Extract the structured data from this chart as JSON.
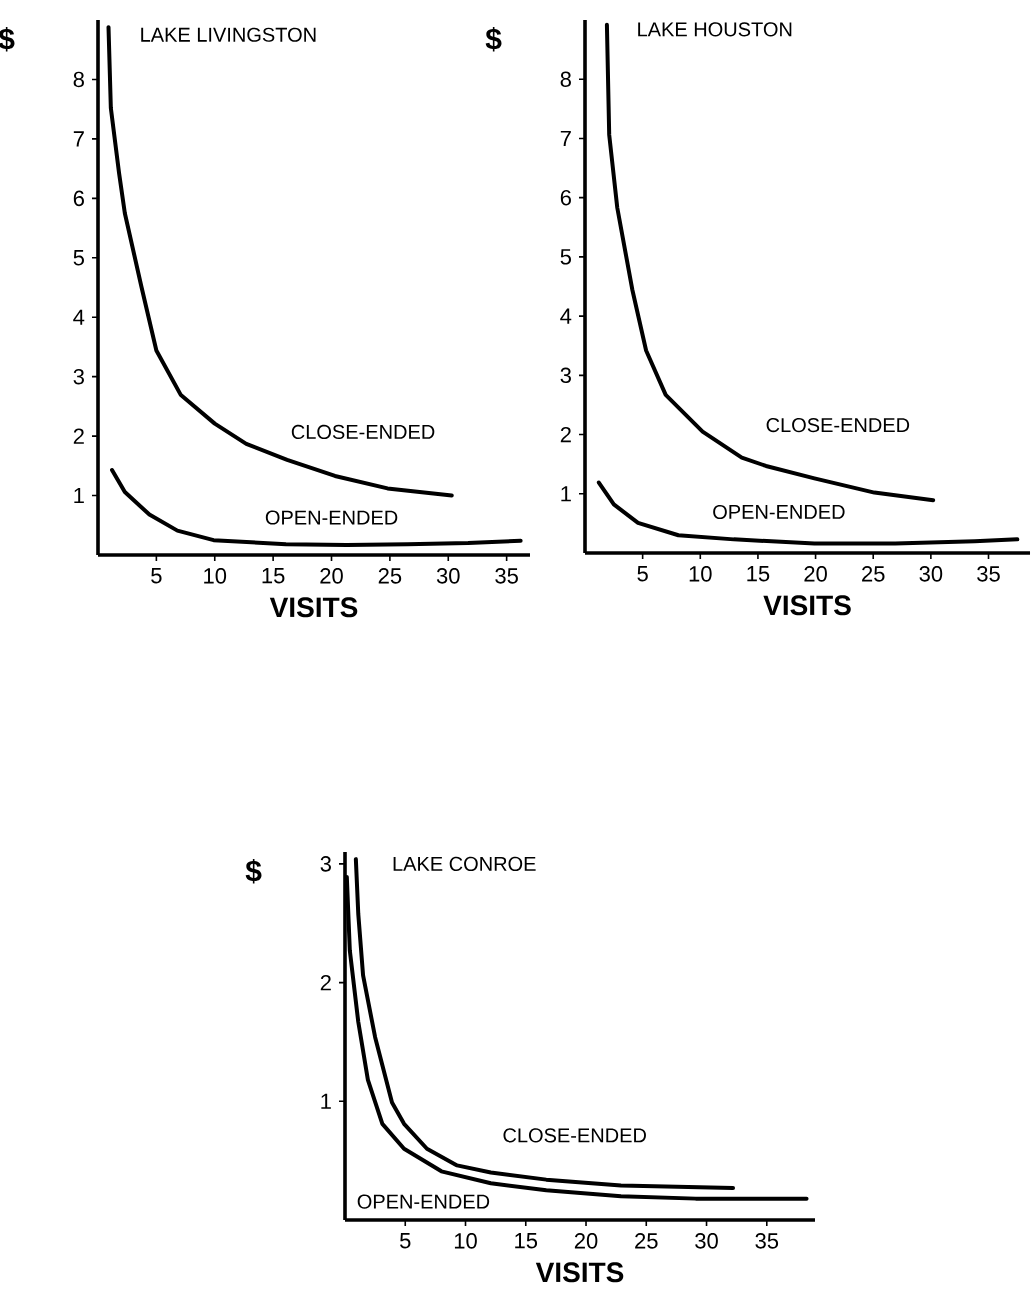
{
  "chart_data": [
    {
      "type": "line",
      "title": "LAKE LIVINGSTON",
      "xlabel": "VISITS",
      "ylabel": "$",
      "xlim": [
        0,
        37
      ],
      "ylim": [
        0,
        9
      ],
      "xticks": [
        5,
        10,
        15,
        20,
        25,
        30,
        35
      ],
      "yticks": [
        1,
        2,
        3,
        4,
        5,
        6,
        7,
        8
      ],
      "series": [
        {
          "name": "CLOSE-ENDED",
          "color": "#000000",
          "x": [
            0.9,
            1.1,
            1.8,
            2.3,
            3.7,
            5.0,
            7.1,
            10.0,
            12.7,
            16.2,
            20.3,
            24.8,
            30.3
          ],
          "values": [
            8.88,
            7.52,
            6.43,
            5.75,
            4.53,
            3.44,
            2.69,
            2.21,
            1.87,
            1.6,
            1.33,
            1.12,
            1.0
          ]
        },
        {
          "name": "OPEN-ENDED",
          "color": "#000000",
          "x": [
            1.2,
            2.3,
            4.4,
            6.8,
            9.9,
            16.1,
            21.3,
            26.5,
            31.7,
            36.2
          ],
          "values": [
            1.43,
            1.06,
            0.68,
            0.41,
            0.25,
            0.18,
            0.17,
            0.18,
            0.2,
            0.24
          ]
        }
      ]
    },
    {
      "type": "line",
      "title": "LAKE HOUSTON",
      "xlabel": "VISITS",
      "ylabel": "$",
      "xlim": [
        0,
        38.6
      ],
      "ylim": [
        0,
        9
      ],
      "xticks": [
        5,
        10,
        15,
        20,
        25,
        30,
        35
      ],
      "yticks": [
        1,
        2,
        3,
        4,
        5,
        6,
        7,
        8
      ],
      "series": [
        {
          "name": "CLOSE-ENDED",
          "color": "#000000",
          "x": [
            1.9,
            2.1,
            2.8,
            4.1,
            5.3,
            7.0,
            10.2,
            13.6,
            15.7,
            19.9,
            25.1,
            30.2
          ],
          "values": [
            8.92,
            7.06,
            5.83,
            4.45,
            3.42,
            2.67,
            2.05,
            1.61,
            1.47,
            1.26,
            1.02,
            0.89
          ]
        },
        {
          "name": "OPEN-ENDED",
          "color": "#000000",
          "x": [
            1.2,
            2.5,
            4.6,
            8.1,
            12.9,
            19.9,
            26.9,
            33.8,
            37.5
          ],
          "values": [
            1.19,
            0.82,
            0.51,
            0.3,
            0.23,
            0.16,
            0.16,
            0.2,
            0.23
          ]
        }
      ]
    },
    {
      "type": "line",
      "title": "LAKE CONROE",
      "xlabel": "VISITS",
      "ylabel": "$",
      "xlim": [
        0,
        39
      ],
      "ylim": [
        0,
        3.1
      ],
      "xticks": [
        5,
        10,
        15,
        20,
        25,
        30,
        35
      ],
      "yticks": [
        1,
        2,
        3
      ],
      "series": [
        {
          "name": "CLOSE-ENDED",
          "color": "#000000",
          "x": [
            0.9,
            1.1,
            1.5,
            2.5,
            3.9,
            4.9,
            6.8,
            9.3,
            12.1,
            16.7,
            22.9,
            32.2
          ],
          "values": [
            3.04,
            2.58,
            2.06,
            1.54,
            0.99,
            0.81,
            0.6,
            0.46,
            0.4,
            0.34,
            0.29,
            0.27
          ]
        },
        {
          "name": "OPEN-ENDED",
          "color": "#000000",
          "x": [
            0.15,
            0.4,
            1.1,
            1.9,
            3.1,
            4.9,
            8.0,
            12.1,
            16.7,
            22.9,
            29.1,
            38.3
          ],
          "values": [
            2.89,
            2.27,
            1.67,
            1.18,
            0.81,
            0.6,
            0.41,
            0.31,
            0.25,
            0.2,
            0.18,
            0.18
          ]
        }
      ]
    }
  ]
}
